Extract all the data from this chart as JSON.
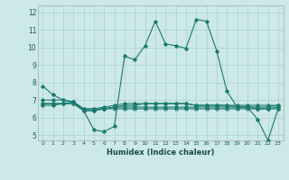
{
  "xlabel": "Humidex (Indice chaleur)",
  "ylabel": "",
  "bg_color": "#cce8e8",
  "line_color": "#1a7a6e",
  "grid_color": "#aad0d0",
  "xlim": [
    -0.5,
    23.5
  ],
  "ylim": [
    4.7,
    12.4
  ],
  "xticks": [
    0,
    1,
    2,
    3,
    4,
    5,
    6,
    7,
    8,
    9,
    10,
    11,
    12,
    13,
    14,
    15,
    16,
    17,
    18,
    19,
    20,
    21,
    22,
    23
  ],
  "yticks": [
    5,
    6,
    7,
    8,
    9,
    10,
    11,
    12
  ],
  "line1": [
    7.8,
    7.3,
    7.0,
    6.9,
    6.4,
    5.3,
    5.2,
    5.5,
    9.5,
    9.3,
    10.1,
    11.5,
    10.2,
    10.1,
    9.95,
    11.6,
    11.5,
    9.8,
    7.5,
    6.6,
    6.6,
    5.9,
    4.7,
    6.5
  ],
  "line2": [
    7.0,
    7.0,
    7.0,
    6.9,
    6.5,
    6.5,
    6.6,
    6.7,
    6.8,
    6.8,
    6.8,
    6.8,
    6.8,
    6.8,
    6.8,
    6.7,
    6.7,
    6.7,
    6.7,
    6.7,
    6.7,
    6.7,
    6.7,
    6.7
  ],
  "line3": [
    6.8,
    6.8,
    6.8,
    6.8,
    6.4,
    6.4,
    6.5,
    6.6,
    6.7,
    6.7,
    6.8,
    6.8,
    6.8,
    6.8,
    6.8,
    6.7,
    6.7,
    6.7,
    6.7,
    6.6,
    6.6,
    6.5,
    6.5,
    6.6
  ],
  "line4": [
    6.7,
    6.7,
    6.8,
    6.8,
    6.4,
    6.4,
    6.5,
    6.6,
    6.6,
    6.6,
    6.6,
    6.6,
    6.6,
    6.6,
    6.6,
    6.6,
    6.6,
    6.6,
    6.6,
    6.6,
    6.6,
    6.6,
    6.6,
    6.7
  ],
  "line5": [
    6.8,
    6.8,
    6.8,
    6.9,
    6.5,
    6.5,
    6.5,
    6.5,
    6.5,
    6.5,
    6.5,
    6.5,
    6.5,
    6.5,
    6.5,
    6.5,
    6.5,
    6.5,
    6.5,
    6.5,
    6.5,
    6.5,
    6.5,
    6.5
  ]
}
